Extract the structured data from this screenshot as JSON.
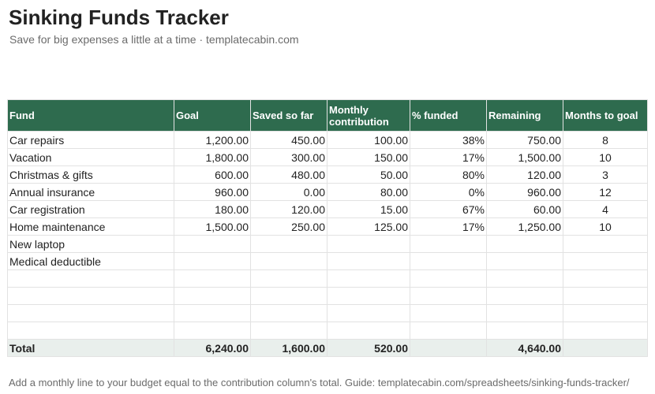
{
  "header": {
    "title": "Sinking Funds Tracker",
    "subtitle": "Save for big expenses a little at a time · templatecabin.com"
  },
  "table": {
    "columns": [
      "Fund",
      "Goal",
      "Saved so far",
      "Monthly contribution",
      "% funded",
      "Remaining",
      "Months to goal"
    ],
    "rows": [
      [
        "Car repairs",
        "1,200.00",
        "450.00",
        "100.00",
        "38%",
        "750.00",
        "8"
      ],
      [
        "Vacation",
        "1,800.00",
        "300.00",
        "150.00",
        "17%",
        "1,500.00",
        "10"
      ],
      [
        "Christmas & gifts",
        "600.00",
        "480.00",
        "50.00",
        "80%",
        "120.00",
        "3"
      ],
      [
        "Annual insurance",
        "960.00",
        "0.00",
        "80.00",
        "0%",
        "960.00",
        "12"
      ],
      [
        "Car registration",
        "180.00",
        "120.00",
        "15.00",
        "67%",
        "60.00",
        "4"
      ],
      [
        "Home maintenance",
        "1,500.00",
        "250.00",
        "125.00",
        "17%",
        "1,250.00",
        "10"
      ],
      [
        "New laptop",
        "",
        "",
        "",
        "",
        "",
        ""
      ],
      [
        "Medical deductible",
        "",
        "",
        "",
        "",
        "",
        ""
      ],
      [
        "",
        "",
        "",
        "",
        "",
        "",
        ""
      ],
      [
        "",
        "",
        "",
        "",
        "",
        "",
        ""
      ],
      [
        "",
        "",
        "",
        "",
        "",
        "",
        ""
      ],
      [
        "",
        "",
        "",
        "",
        "",
        "",
        ""
      ]
    ],
    "total": [
      "Total",
      "6,240.00",
      "1,600.00",
      "520.00",
      "",
      "4,640.00",
      ""
    ]
  },
  "footer": {
    "note": "Add a monthly line to your budget equal to the contribution column's total. Guide: templatecabin.com/spreadsheets/sinking-funds-tracker/"
  },
  "colors": {
    "header_fill": "#2e6b4e",
    "header_text": "#ffffff",
    "total_fill": "#e9efec",
    "grid": "#e2e2e2"
  }
}
